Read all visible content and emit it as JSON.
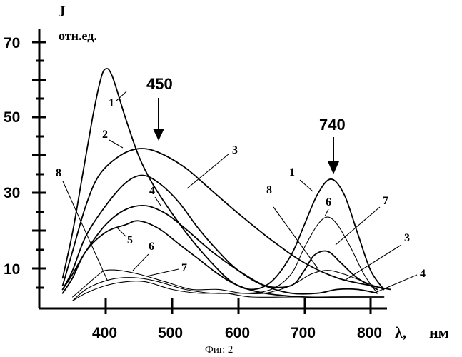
{
  "chart_data": {
    "type": "line",
    "ylabel": "J",
    "yunit": "отн.ед.",
    "xlabel_symbol": "λ,",
    "xunit": "нм",
    "caption": "Фиг. 2",
    "x_ticks": [
      400,
      500,
      600,
      700,
      800
    ],
    "y_ticks": [
      10,
      30,
      50,
      70
    ],
    "xlim": [
      300,
      830
    ],
    "ylim": [
      0,
      75
    ],
    "annotations": [
      {
        "text": "450",
        "x": 450
      },
      {
        "text": "740",
        "x": 740
      }
    ],
    "series": [
      {
        "label": "1",
        "points": [
          [
            335,
            8
          ],
          [
            350,
            20
          ],
          [
            365,
            35
          ],
          [
            380,
            50
          ],
          [
            392,
            60
          ],
          [
            400,
            63
          ],
          [
            410,
            61
          ],
          [
            430,
            50
          ],
          [
            450,
            40
          ],
          [
            470,
            33
          ],
          [
            500,
            25
          ],
          [
            530,
            18
          ],
          [
            560,
            12
          ],
          [
            590,
            7
          ],
          [
            620,
            5
          ],
          [
            650,
            7
          ],
          [
            680,
            14
          ],
          [
            700,
            22
          ],
          [
            720,
            30
          ],
          [
            740,
            34
          ],
          [
            760,
            30
          ],
          [
            780,
            20
          ],
          [
            800,
            10
          ],
          [
            820,
            5
          ]
        ]
      },
      {
        "label": "2",
        "points": [
          [
            335,
            6
          ],
          [
            350,
            15
          ],
          [
            370,
            27
          ],
          [
            390,
            35
          ],
          [
            420,
            40
          ],
          [
            450,
            42
          ],
          [
            480,
            41
          ],
          [
            520,
            37
          ],
          [
            560,
            31
          ],
          [
            600,
            25
          ],
          [
            650,
            18
          ],
          [
            700,
            12
          ],
          [
            750,
            8
          ],
          [
            800,
            6
          ],
          [
            830,
            5
          ]
        ]
      },
      {
        "label": "3",
        "points": [
          [
            335,
            5
          ],
          [
            350,
            10
          ],
          [
            370,
            19
          ],
          [
            400,
            27
          ],
          [
            430,
            33
          ],
          [
            455,
            35
          ],
          [
            480,
            33
          ],
          [
            510,
            28
          ],
          [
            540,
            21
          ],
          [
            570,
            15
          ],
          [
            600,
            10
          ],
          [
            640,
            6
          ],
          [
            680,
            6
          ],
          [
            700,
            10
          ],
          [
            715,
            14
          ],
          [
            735,
            15
          ],
          [
            755,
            12
          ],
          [
            780,
            8
          ],
          [
            810,
            5
          ]
        ]
      },
      {
        "label": "4",
        "points": [
          [
            335,
            5
          ],
          [
            350,
            9
          ],
          [
            370,
            15
          ],
          [
            400,
            22
          ],
          [
            430,
            26
          ],
          [
            460,
            27
          ],
          [
            490,
            25
          ],
          [
            520,
            21
          ],
          [
            560,
            15
          ],
          [
            600,
            10
          ],
          [
            640,
            6
          ],
          [
            680,
            4
          ],
          [
            720,
            4
          ],
          [
            750,
            5
          ],
          [
            780,
            5
          ],
          [
            810,
            4
          ]
        ]
      },
      {
        "label": "5",
        "points": [
          [
            335,
            4
          ],
          [
            350,
            8
          ],
          [
            370,
            15
          ],
          [
            400,
            20
          ],
          [
            430,
            22
          ],
          [
            450,
            23
          ],
          [
            480,
            21
          ],
          [
            510,
            17
          ],
          [
            540,
            13
          ],
          [
            570,
            9
          ],
          [
            600,
            6
          ],
          [
            640,
            4
          ],
          [
            700,
            3
          ],
          [
            760,
            3
          ],
          [
            820,
            3
          ]
        ]
      },
      {
        "label": "6",
        "points": [
          [
            350,
            3
          ],
          [
            370,
            6
          ],
          [
            390,
            9
          ],
          [
            400,
            10
          ],
          [
            420,
            10
          ],
          [
            450,
            9
          ],
          [
            490,
            7
          ],
          [
            530,
            5
          ],
          [
            570,
            5
          ],
          [
            610,
            4
          ],
          [
            650,
            5
          ],
          [
            680,
            9
          ],
          [
            700,
            16
          ],
          [
            720,
            22
          ],
          [
            735,
            24
          ],
          [
            750,
            22
          ],
          [
            770,
            16
          ],
          [
            790,
            9
          ],
          [
            810,
            4
          ]
        ]
      },
      {
        "label": "7",
        "points": [
          [
            350,
            2
          ],
          [
            370,
            5
          ],
          [
            395,
            7
          ],
          [
            420,
            8
          ],
          [
            450,
            8
          ],
          [
            480,
            7
          ],
          [
            520,
            5
          ],
          [
            560,
            4
          ],
          [
            600,
            4
          ],
          [
            640,
            4
          ],
          [
            680,
            6
          ],
          [
            710,
            9
          ],
          [
            735,
            10
          ],
          [
            760,
            9
          ],
          [
            790,
            7
          ],
          [
            820,
            5
          ]
        ]
      },
      {
        "label": "8",
        "points": [
          [
            350,
            2
          ],
          [
            370,
            4
          ],
          [
            400,
            6
          ],
          [
            430,
            7
          ],
          [
            460,
            7
          ],
          [
            500,
            5
          ],
          [
            540,
            4
          ],
          [
            580,
            4
          ],
          [
            620,
            3
          ],
          [
            680,
            3
          ],
          [
            740,
            3
          ],
          [
            800,
            3
          ]
        ]
      }
    ]
  }
}
